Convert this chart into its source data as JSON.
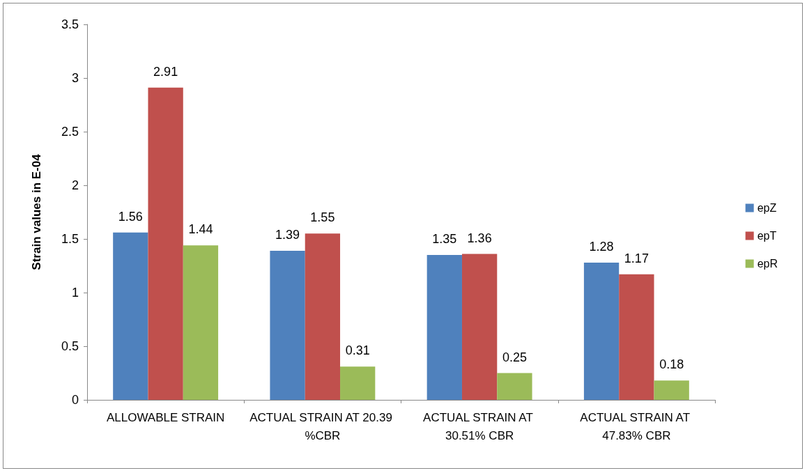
{
  "chart_data": {
    "type": "bar",
    "ylabel": "Strain values in E-04",
    "categories": [
      "ALLOWABLE STRAIN",
      "ACTUAL STRAIN AT 20.39 %CBR",
      "ACTUAL STRAIN AT 30.51% CBR",
      "ACTUAL STRAIN AT 47.83% CBR"
    ],
    "series": [
      {
        "name": "epZ",
        "color": "#4f81bd",
        "values": [
          1.56,
          1.39,
          1.35,
          1.28
        ]
      },
      {
        "name": "epT",
        "color": "#c0504d",
        "values": [
          2.91,
          1.55,
          1.36,
          1.17
        ]
      },
      {
        "name": "epR",
        "color": "#9bbb59",
        "values": [
          1.44,
          0.31,
          0.25,
          0.18
        ]
      }
    ],
    "ylim": [
      0,
      3.5
    ],
    "yticks": [
      0,
      0.5,
      1,
      1.5,
      2,
      2.5,
      3,
      3.5
    ],
    "grid": false,
    "legend": "right",
    "data_labels": true
  }
}
